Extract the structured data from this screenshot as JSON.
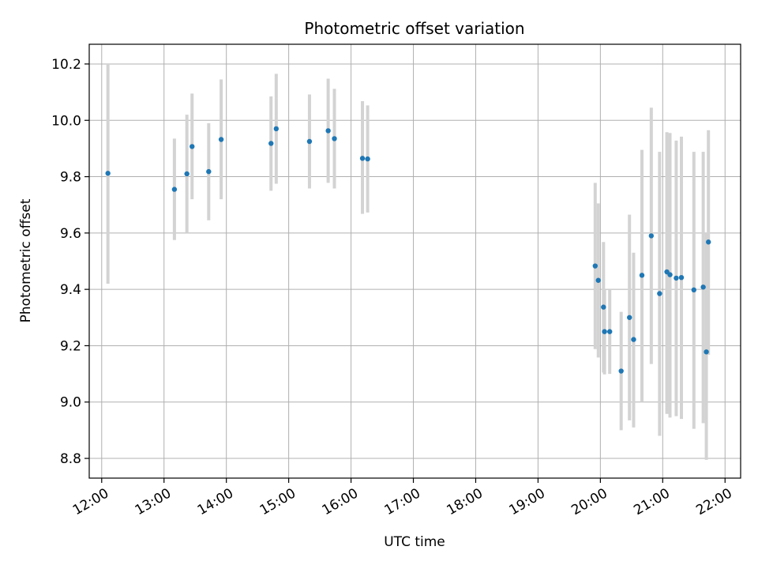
{
  "chart_data": {
    "type": "scatter",
    "title": "Photometric offset variation",
    "xlabel": "UTC time",
    "ylabel": "Photometric offset",
    "xlim": [
      "11:48",
      "22:15"
    ],
    "ylim": [
      8.73,
      10.27
    ],
    "x_ticks": [
      "12:00",
      "13:00",
      "14:00",
      "15:00",
      "16:00",
      "17:00",
      "18:00",
      "19:00",
      "20:00",
      "21:00",
      "22:00"
    ],
    "y_ticks": [
      "8.8",
      "9.0",
      "9.2",
      "9.4",
      "9.6",
      "9.8",
      "10.0",
      "10.2"
    ],
    "grid": true,
    "marker_color": "#1f77b4",
    "errorbar_color": "#d3d3d3",
    "points": [
      {
        "x": "12:06",
        "y": 9.812,
        "ylow": 9.42,
        "yhigh": 10.2
      },
      {
        "x": "13:10",
        "y": 9.755,
        "ylow": 9.575,
        "yhigh": 9.935
      },
      {
        "x": "13:22",
        "y": 9.81,
        "ylow": 9.6,
        "yhigh": 10.02
      },
      {
        "x": "13:27",
        "y": 9.907,
        "ylow": 9.72,
        "yhigh": 10.095
      },
      {
        "x": "13:43",
        "y": 9.818,
        "ylow": 9.645,
        "yhigh": 9.99
      },
      {
        "x": "13:55",
        "y": 9.932,
        "ylow": 9.72,
        "yhigh": 10.145
      },
      {
        "x": "14:43",
        "y": 9.918,
        "ylow": 9.75,
        "yhigh": 10.085
      },
      {
        "x": "14:48",
        "y": 9.97,
        "ylow": 9.775,
        "yhigh": 10.165
      },
      {
        "x": "15:20",
        "y": 9.925,
        "ylow": 9.758,
        "yhigh": 10.092
      },
      {
        "x": "15:38",
        "y": 9.963,
        "ylow": 9.778,
        "yhigh": 10.148
      },
      {
        "x": "15:44",
        "y": 9.935,
        "ylow": 9.758,
        "yhigh": 10.112
      },
      {
        "x": "16:11",
        "y": 9.865,
        "ylow": 9.668,
        "yhigh": 10.068
      },
      {
        "x": "16:16",
        "y": 9.863,
        "ylow": 9.673,
        "yhigh": 10.053
      },
      {
        "x": "19:55",
        "y": 9.483,
        "ylow": 9.188,
        "yhigh": 9.778
      },
      {
        "x": "19:58",
        "y": 9.432,
        "ylow": 9.158,
        "yhigh": 9.705
      },
      {
        "x": "20:03",
        "y": 9.337,
        "ylow": 9.105,
        "yhigh": 9.568
      },
      {
        "x": "20:04",
        "y": 9.25,
        "ylow": 9.098,
        "yhigh": 9.398
      },
      {
        "x": "20:09",
        "y": 9.25,
        "ylow": 9.1,
        "yhigh": 9.4
      },
      {
        "x": "20:20",
        "y": 9.11,
        "ylow": 8.9,
        "yhigh": 9.32
      },
      {
        "x": "20:28",
        "y": 9.3,
        "ylow": 8.935,
        "yhigh": 9.665
      },
      {
        "x": "20:32",
        "y": 9.222,
        "ylow": 8.91,
        "yhigh": 9.53
      },
      {
        "x": "20:40",
        "y": 9.45,
        "ylow": 9.0,
        "yhigh": 9.895
      },
      {
        "x": "20:49",
        "y": 9.59,
        "ylow": 9.135,
        "yhigh": 10.045
      },
      {
        "x": "20:57",
        "y": 9.385,
        "ylow": 8.88,
        "yhigh": 9.888
      },
      {
        "x": "21:04",
        "y": 9.462,
        "ylow": 8.958,
        "yhigh": 9.958
      },
      {
        "x": "21:07",
        "y": 9.452,
        "ylow": 8.945,
        "yhigh": 9.955
      },
      {
        "x": "21:13",
        "y": 9.44,
        "ylow": 8.95,
        "yhigh": 9.928
      },
      {
        "x": "21:18",
        "y": 9.442,
        "ylow": 8.94,
        "yhigh": 9.942
      },
      {
        "x": "21:30",
        "y": 9.398,
        "ylow": 8.905,
        "yhigh": 9.888
      },
      {
        "x": "21:39",
        "y": 9.408,
        "ylow": 8.925,
        "yhigh": 9.888
      },
      {
        "x": "21:42",
        "y": 9.178,
        "ylow": 8.795,
        "yhigh": 9.6
      },
      {
        "x": "21:44",
        "y": 9.568,
        "ylow": 9.168,
        "yhigh": 9.965
      }
    ]
  }
}
